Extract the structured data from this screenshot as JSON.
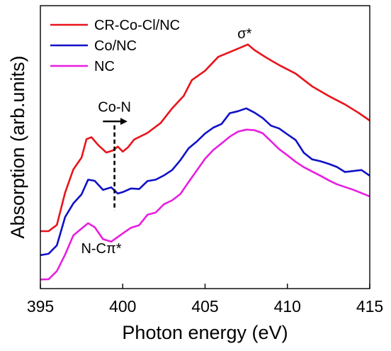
{
  "chart_data": {
    "type": "line",
    "xlabel": "Photon energy (eV)",
    "ylabel": "Absorption (arb.units)",
    "xlim": [
      395,
      415
    ],
    "ylim": [
      0,
      1
    ],
    "x_ticks": [
      "395",
      "400",
      "405",
      "410",
      "415"
    ],
    "y_ticks_labeled": false,
    "grid": false,
    "legend_position": "top-left",
    "series": [
      {
        "name": "CR-Co-Cl/NC",
        "color": "#e8141b",
        "points": [
          [
            395,
            0.203
          ],
          [
            395.5,
            0.203
          ],
          [
            396,
            0.225
          ],
          [
            396.5,
            0.339
          ],
          [
            397,
            0.421
          ],
          [
            397.5,
            0.463
          ],
          [
            397.8,
            0.528
          ],
          [
            398.1,
            0.535
          ],
          [
            398.5,
            0.508
          ],
          [
            399,
            0.481
          ],
          [
            399.4,
            0.488
          ],
          [
            399.7,
            0.502
          ],
          [
            400,
            0.484
          ],
          [
            400.3,
            0.498
          ],
          [
            400.7,
            0.527
          ],
          [
            401.5,
            0.55
          ],
          [
            402.3,
            0.585
          ],
          [
            403,
            0.637
          ],
          [
            403.7,
            0.681
          ],
          [
            404.2,
            0.737
          ],
          [
            405,
            0.77
          ],
          [
            405.8,
            0.819
          ],
          [
            406.5,
            0.836
          ],
          [
            407.2,
            0.853
          ],
          [
            407.6,
            0.863
          ],
          [
            408,
            0.843
          ],
          [
            408.7,
            0.817
          ],
          [
            409.5,
            0.79
          ],
          [
            410.5,
            0.76
          ],
          [
            411.5,
            0.715
          ],
          [
            412.5,
            0.681
          ],
          [
            413.5,
            0.651
          ],
          [
            414.3,
            0.622
          ],
          [
            415,
            0.594
          ]
        ]
      },
      {
        "name": "Co/NC",
        "color": "#1010c8",
        "points": [
          [
            395,
            0.118
          ],
          [
            395.5,
            0.123
          ],
          [
            396,
            0.153
          ],
          [
            396.5,
            0.253
          ],
          [
            397,
            0.301
          ],
          [
            397.5,
            0.333
          ],
          [
            397.9,
            0.385
          ],
          [
            398.3,
            0.381
          ],
          [
            398.8,
            0.349
          ],
          [
            399.3,
            0.358
          ],
          [
            399.7,
            0.336
          ],
          [
            400,
            0.341
          ],
          [
            400.5,
            0.354
          ],
          [
            401,
            0.352
          ],
          [
            401.5,
            0.38
          ],
          [
            402,
            0.385
          ],
          [
            402.5,
            0.4
          ],
          [
            403,
            0.419
          ],
          [
            403.5,
            0.454
          ],
          [
            404,
            0.496
          ],
          [
            404.5,
            0.52
          ],
          [
            405,
            0.548
          ],
          [
            405.5,
            0.569
          ],
          [
            406,
            0.582
          ],
          [
            406.5,
            0.62
          ],
          [
            407,
            0.627
          ],
          [
            407.5,
            0.637
          ],
          [
            408,
            0.622
          ],
          [
            408.5,
            0.603
          ],
          [
            409,
            0.576
          ],
          [
            409.5,
            0.566
          ],
          [
            410,
            0.545
          ],
          [
            410.5,
            0.525
          ],
          [
            411,
            0.48
          ],
          [
            411.5,
            0.457
          ],
          [
            412,
            0.45
          ],
          [
            412.5,
            0.441
          ],
          [
            413,
            0.43
          ],
          [
            413.5,
            0.412
          ],
          [
            414.5,
            0.419
          ],
          [
            415,
            0.399
          ]
        ]
      },
      {
        "name": "NC",
        "color": "#e81ee0",
        "points": [
          [
            395,
            0.032
          ],
          [
            395.5,
            0.033
          ],
          [
            396,
            0.062
          ],
          [
            396.5,
            0.12
          ],
          [
            397,
            0.188
          ],
          [
            397.5,
            0.212
          ],
          [
            397.9,
            0.231
          ],
          [
            398.3,
            0.217
          ],
          [
            398.8,
            0.175
          ],
          [
            399.3,
            0.166
          ],
          [
            400,
            0.195
          ],
          [
            400.5,
            0.215
          ],
          [
            401,
            0.224
          ],
          [
            401.5,
            0.261
          ],
          [
            402,
            0.269
          ],
          [
            402.5,
            0.298
          ],
          [
            403,
            0.312
          ],
          [
            403.5,
            0.334
          ],
          [
            404,
            0.377
          ],
          [
            404.5,
            0.418
          ],
          [
            405,
            0.459
          ],
          [
            405.5,
            0.49
          ],
          [
            406,
            0.513
          ],
          [
            406.5,
            0.537
          ],
          [
            407,
            0.555
          ],
          [
            407.5,
            0.562
          ],
          [
            408,
            0.56
          ],
          [
            408.5,
            0.549
          ],
          [
            409,
            0.521
          ],
          [
            409.5,
            0.493
          ],
          [
            410,
            0.471
          ],
          [
            410.5,
            0.448
          ],
          [
            411,
            0.429
          ],
          [
            411.5,
            0.414
          ],
          [
            412,
            0.399
          ],
          [
            412.5,
            0.383
          ],
          [
            413,
            0.369
          ],
          [
            414,
            0.349
          ],
          [
            415,
            0.326
          ]
        ]
      }
    ],
    "annotations": [
      {
        "text": "σ*",
        "x": 407.4,
        "y": 0.885
      },
      {
        "text": "Co-N",
        "x": 399.5,
        "y": 0.625
      },
      {
        "text": "N-Cπ*",
        "x": 398.7,
        "y": 0.125
      }
    ],
    "arrow": {
      "x_start": 398.8,
      "x_end": 400.2,
      "y": 0.591
    },
    "dashed_marker": {
      "x": 399.5,
      "y_top": 0.577,
      "y_bottom": 0.276
    }
  }
}
